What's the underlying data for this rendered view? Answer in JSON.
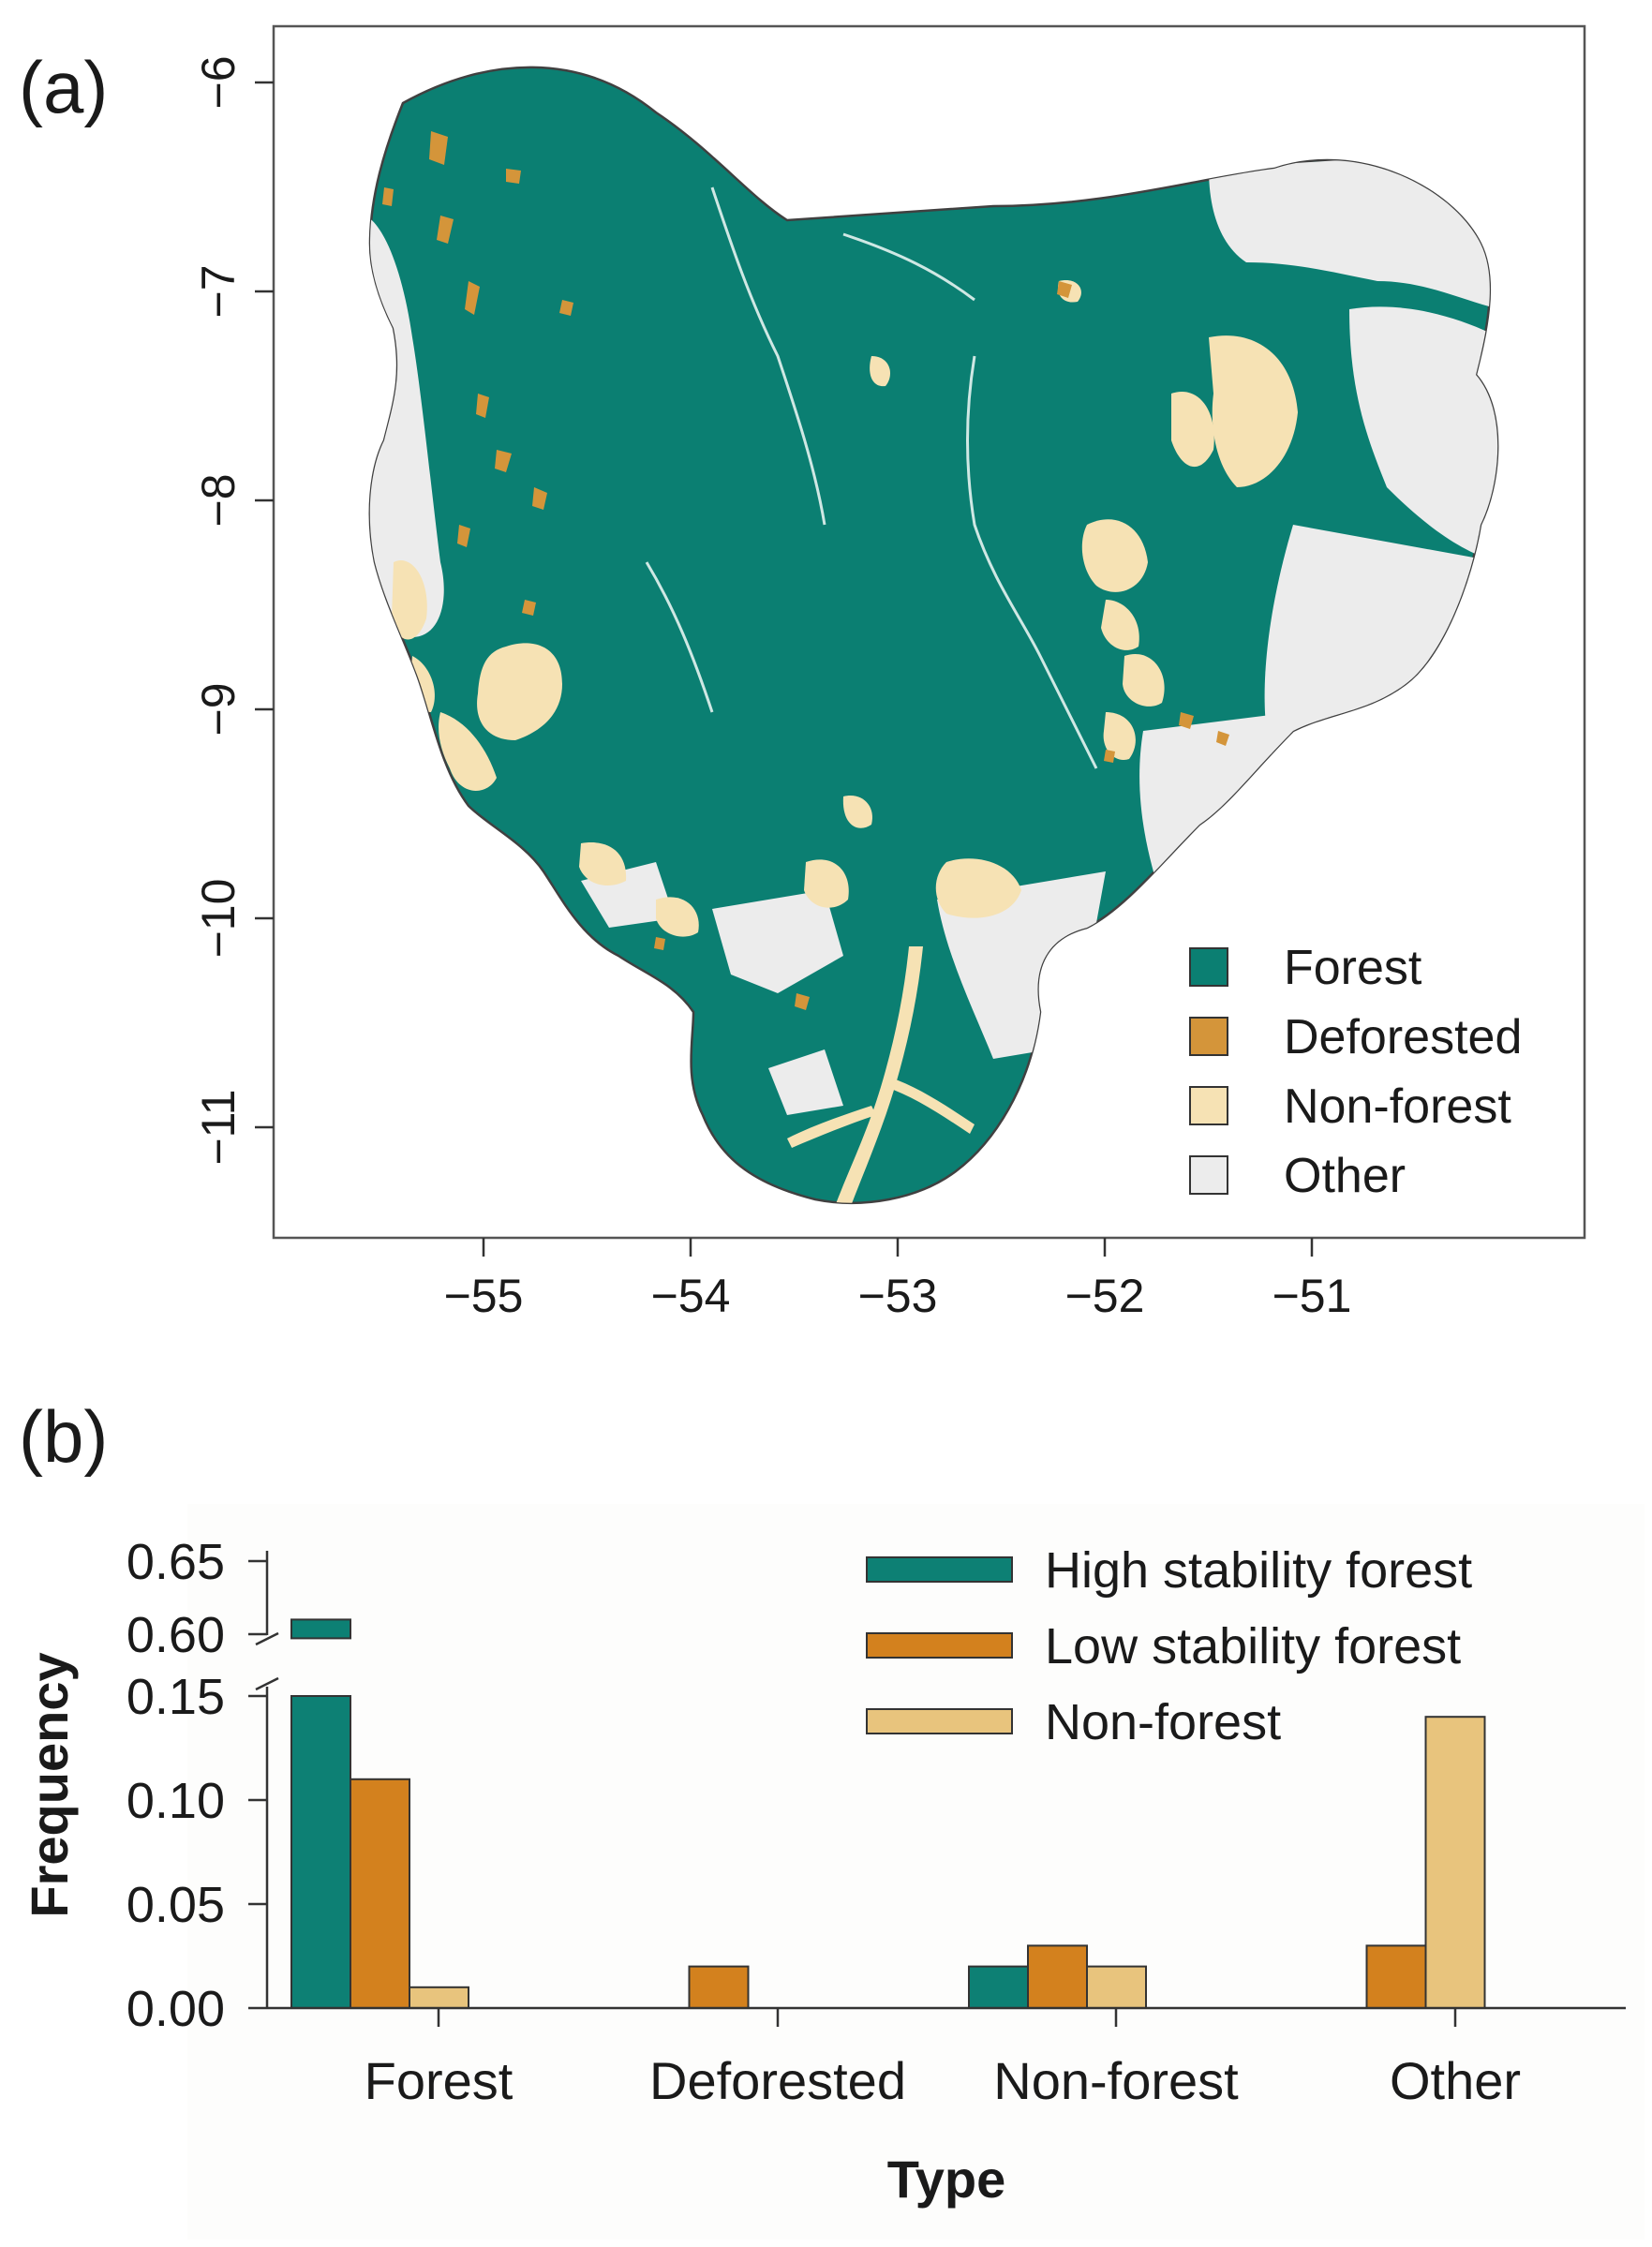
{
  "panel_a_label": "(a)",
  "panel_b_label": "(b)",
  "colors": {
    "forest": "#0b7f72",
    "deforested": "#d4953a",
    "non_forest": "#f6e2b4",
    "other": "#ececec",
    "high_stability": "#0d8074",
    "low_stability": "#d3811e",
    "non_forest_bar": "#e8c47d"
  },
  "chart_data": [
    {
      "type": "map",
      "panel": "(a)",
      "x_ticks": [
        "−55",
        "−54",
        "−53",
        "−52",
        "−51"
      ],
      "y_ticks": [
        "−6",
        "−7",
        "−8",
        "−9",
        "−10",
        "−11"
      ],
      "xlim": [
        -56.0,
        -49.8
      ],
      "ylim": [
        -11.5,
        -5.7
      ],
      "legend": [
        "Forest",
        "Deforested",
        "Non-forest",
        "Other"
      ],
      "legend_position": "bottom-right"
    },
    {
      "type": "bar",
      "panel": "(b)",
      "categories": [
        "Forest",
        "Deforested",
        "Non-forest",
        "Other"
      ],
      "series": [
        {
          "name": "High stability forest",
          "values": [
            0.61,
            0.0,
            0.02,
            0.0
          ]
        },
        {
          "name": "Low stability forest",
          "values": [
            0.11,
            0.02,
            0.03,
            0.03
          ]
        },
        {
          "name": "Non-forest",
          "values": [
            0.01,
            0.0,
            0.02,
            0.14
          ]
        }
      ],
      "xlabel": "Type",
      "ylabel": "Frequency",
      "y_ticks_lower": [
        "0.00",
        "0.05",
        "0.10",
        "0.15"
      ],
      "y_ticks_upper": [
        "0.60",
        "0.65"
      ],
      "ylim_lower": [
        0,
        0.15
      ],
      "ylim_upper": [
        0.6,
        0.65
      ],
      "axis_break": true,
      "legend_position": "top-right"
    }
  ]
}
